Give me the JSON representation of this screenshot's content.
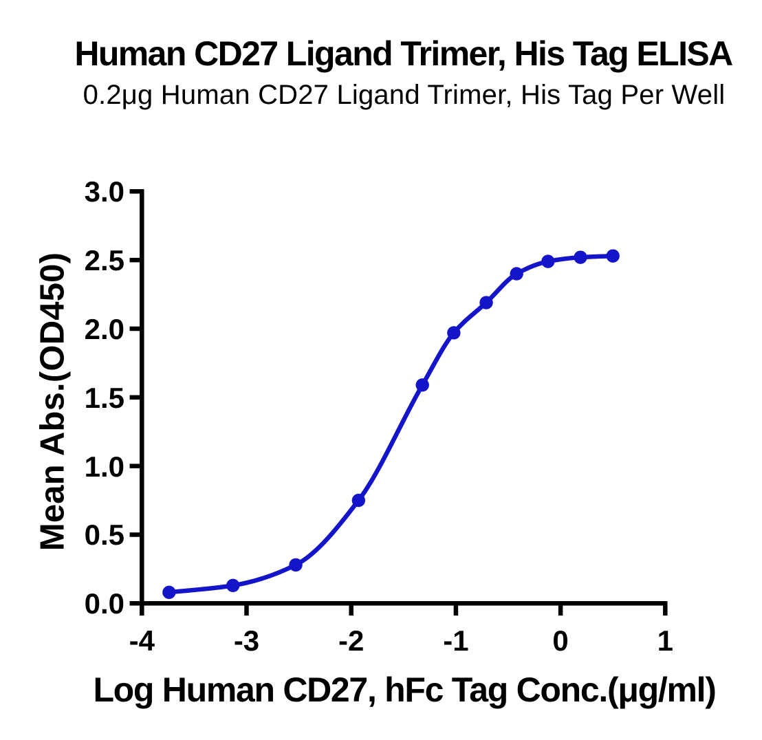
{
  "chart_data": {
    "type": "line",
    "title": "Human CD27 Ligand Trimer, His Tag ELISA",
    "subtitle": "0.2μg Human CD27 Ligand Trimer, His Tag Per Well",
    "xlabel": "Log Human CD27, hFc Tag Conc.(μg/ml)",
    "ylabel": "Mean Abs.(OD450)",
    "xlim": [
      -4,
      1
    ],
    "ylim": [
      0,
      3
    ],
    "x_tick_values": [
      -4,
      -3,
      -2,
      -1,
      0,
      1
    ],
    "x_tick_labels": [
      "-4",
      "-3",
      "-2",
      "-1",
      "0",
      "1"
    ],
    "y_tick_values": [
      0,
      0.5,
      1,
      1.5,
      2,
      2.5,
      3
    ],
    "y_tick_labels": [
      "0.0",
      "0.5",
      "1.0",
      "1.5",
      "2.0",
      "2.5",
      "3.0"
    ],
    "grid": false,
    "legend": "none",
    "axis_color": "#000000",
    "series": [
      {
        "name": "Human CD27, hFc Tag",
        "color": "#1414C8",
        "marker": "circle",
        "points": [
          {
            "x": -3.74,
            "y": 0.08
          },
          {
            "x": -3.13,
            "y": 0.13
          },
          {
            "x": -2.53,
            "y": 0.28
          },
          {
            "x": -1.93,
            "y": 0.75
          },
          {
            "x": -1.32,
            "y": 1.59
          },
          {
            "x": -1.02,
            "y": 1.97
          },
          {
            "x": -0.71,
            "y": 2.19
          },
          {
            "x": -0.42,
            "y": 2.4
          },
          {
            "x": -0.12,
            "y": 2.49
          },
          {
            "x": 0.19,
            "y": 2.52
          },
          {
            "x": 0.5,
            "y": 2.53
          }
        ]
      }
    ]
  }
}
